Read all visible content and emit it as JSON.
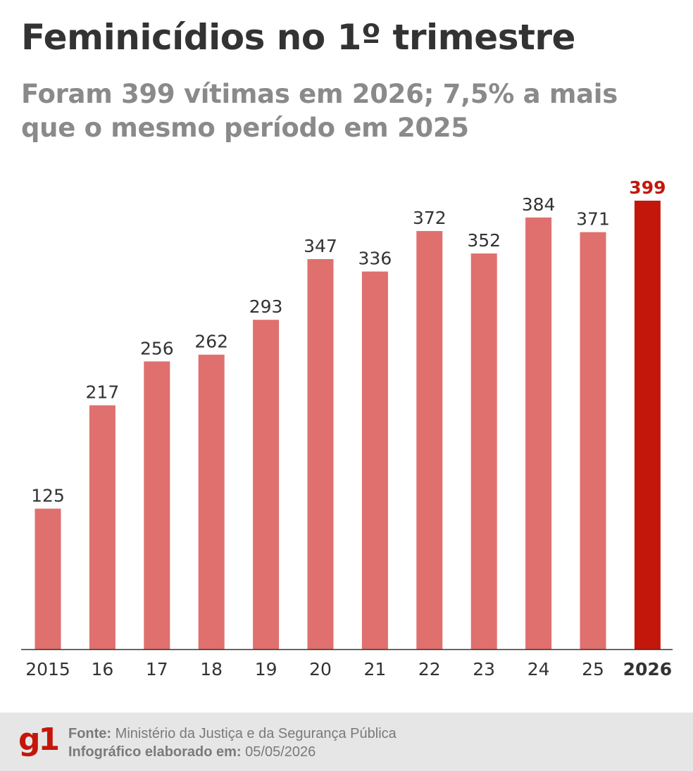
{
  "header": {
    "title": "Feminicídios no 1º trimestre",
    "subtitle": "Foram 399 vítimas em 2026; 7,5% a mais que o mesmo período em 2025"
  },
  "chart_data": {
    "type": "bar",
    "categories": [
      "2015",
      "16",
      "17",
      "18",
      "19",
      "20",
      "21",
      "22",
      "23",
      "24",
      "25",
      "2026"
    ],
    "values": [
      125,
      217,
      256,
      262,
      293,
      347,
      336,
      372,
      352,
      384,
      371,
      399
    ],
    "title": "Feminicídios no 1º trimestre",
    "subtitle": "Foram 399 vítimas em 2026; 7,5% a mais que o mesmo período em 2025",
    "xlabel": "",
    "ylabel": "",
    "ylim": [
      0,
      399
    ],
    "grid": false,
    "highlight_index": 11,
    "colors": {
      "bar": "#df706e",
      "highlight": "#c4170c",
      "label": "#333333",
      "axis": "#333333"
    }
  },
  "footer": {
    "logo": "g1",
    "source_label": "Fonte:",
    "source_value": "Ministério da Justiça e da Segurança Pública",
    "date_label": "Infográfico elaborado em:",
    "date_value": "05/05/2026"
  }
}
